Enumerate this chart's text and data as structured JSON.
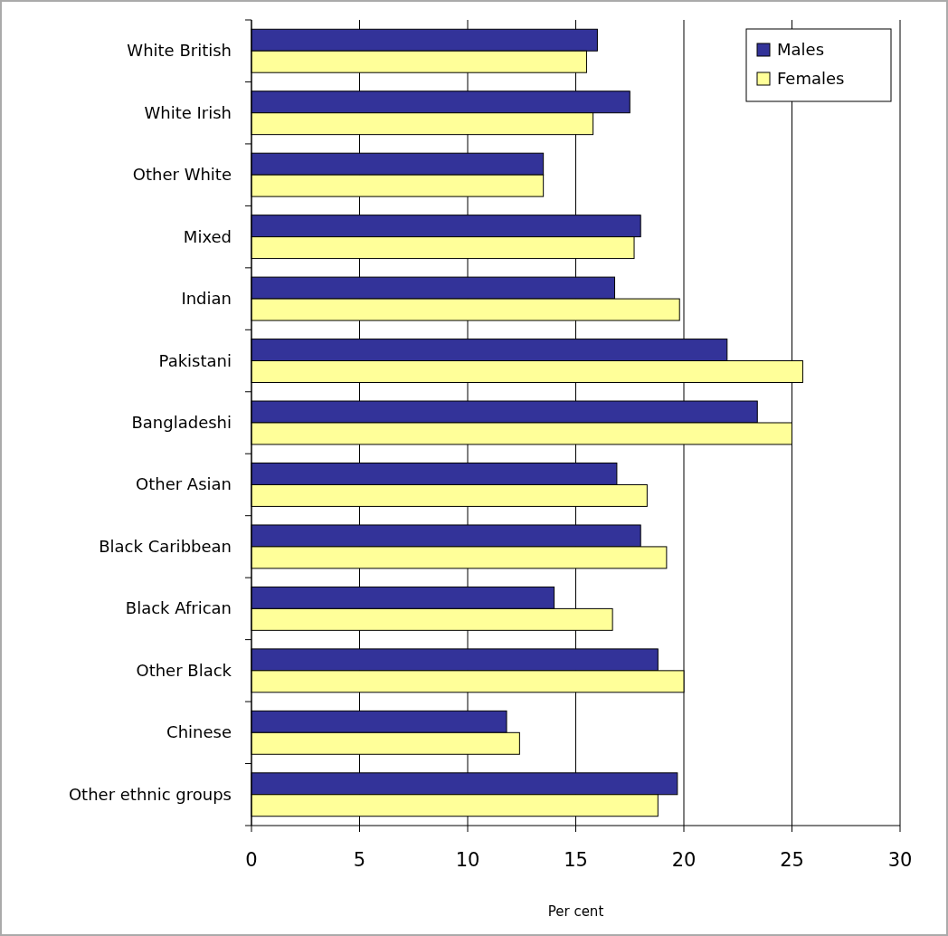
{
  "chart_data": {
    "type": "bar",
    "orientation": "horizontal",
    "xlabel": "Per cent",
    "categories": [
      "White British",
      "White Irish",
      "Other White",
      "Mixed",
      "Indian",
      "Pakistani",
      "Bangladeshi",
      "Other Asian",
      "Black Caribbean",
      "Black African",
      "Other Black",
      "Chinese",
      "Other ethnic groups"
    ],
    "series": [
      {
        "name": "Males",
        "color": "#333399",
        "values": [
          16.0,
          17.5,
          13.5,
          18.0,
          16.8,
          22.0,
          23.4,
          16.9,
          18.0,
          14.0,
          18.8,
          11.8,
          19.7
        ]
      },
      {
        "name": "Females",
        "color": "#ffff99",
        "values": [
          15.5,
          15.8,
          13.5,
          17.7,
          19.8,
          25.5,
          25.0,
          18.3,
          19.2,
          16.7,
          20.0,
          12.4,
          18.8
        ]
      }
    ],
    "xlim": [
      0,
      30
    ],
    "xticks": [
      0,
      5,
      10,
      15,
      20,
      25,
      30
    ],
    "grid": "x",
    "legend": "top right"
  }
}
